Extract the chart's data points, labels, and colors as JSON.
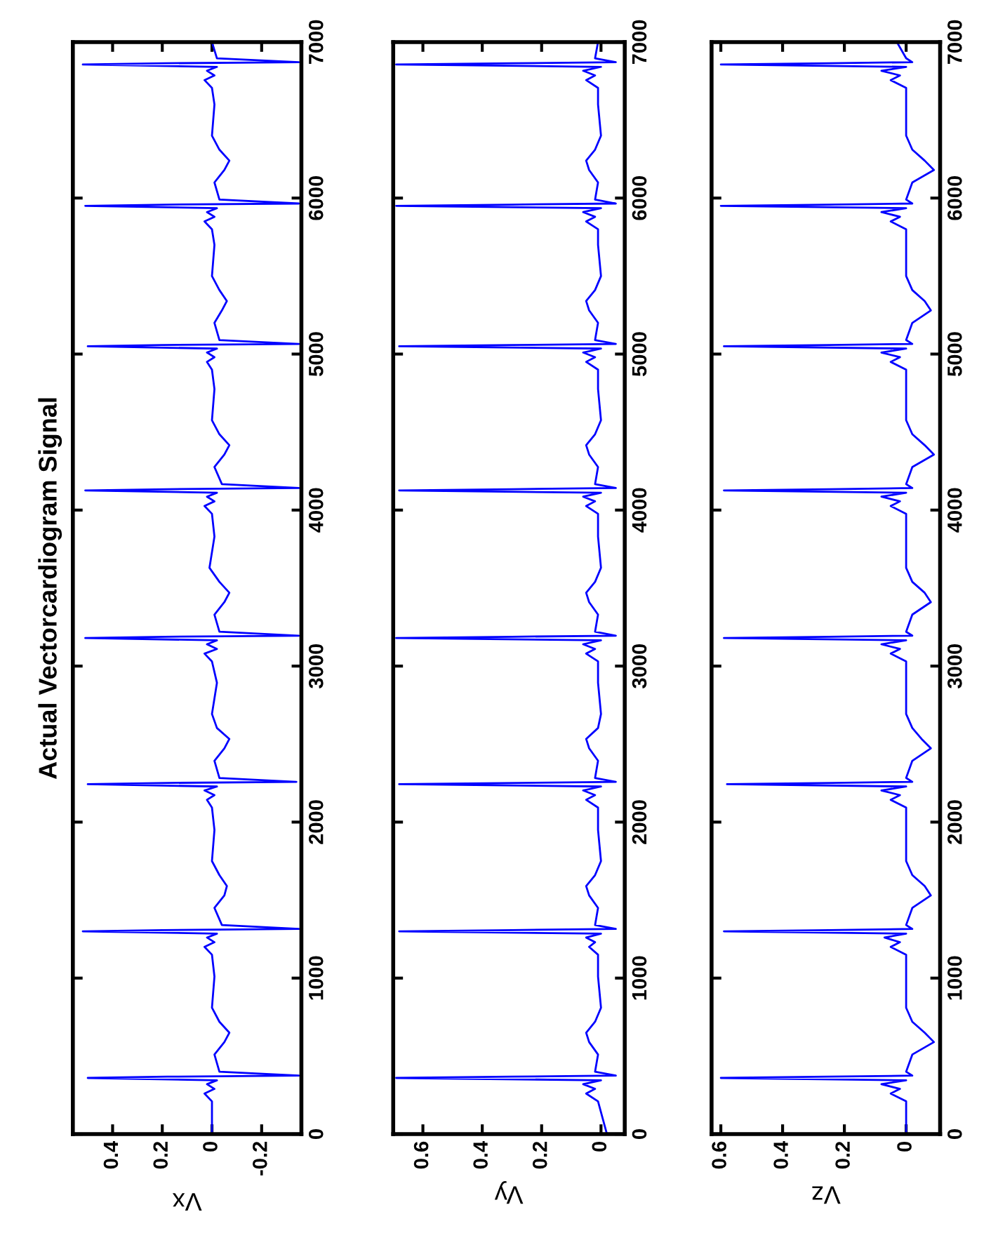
{
  "chart_data": [
    {
      "type": "line",
      "title": "Actual Vectorcardiogram Signal",
      "xlabel": "Vx",
      "color": "#0000ff",
      "ylim": [
        0,
        7000
      ],
      "yticks": [
        0,
        1000,
        2000,
        3000,
        4000,
        5000,
        6000,
        7000
      ],
      "xlim": [
        0.56,
        -0.36
      ],
      "xticks": [
        -0.2,
        0,
        0.2,
        0.4
      ],
      "values": [
        0,
        210,
        260,
        290,
        320,
        345,
        360,
        368,
        375,
        400,
        510,
        590,
        650,
        720,
        810,
        1010,
        1150,
        1200,
        1230,
        1260,
        1285,
        1300,
        1308,
        1315,
        1340,
        1450,
        1530,
        1590,
        1660,
        1750,
        1950,
        2093,
        2143,
        2173,
        2203,
        2228,
        2243,
        2251,
        2258,
        2283,
        2393,
        2473,
        2533,
        2603,
        2693,
        2893,
        3030,
        3080,
        3110,
        3140,
        3165,
        3180,
        3188,
        3195,
        3220,
        3330,
        3410,
        3470,
        3540,
        3630,
        3830,
        3976,
        4026,
        4056,
        4086,
        4111,
        4126,
        4134,
        4141,
        4166,
        4276,
        4356,
        4416,
        4486,
        4576,
        4776,
        4900,
        4950,
        4980,
        5010,
        5035,
        5050,
        5058,
        5065,
        5090,
        5200,
        5280,
        5340,
        5410,
        5500,
        5700,
        5800,
        5850,
        5880,
        5910,
        5935,
        5950,
        5958,
        5965,
        5990,
        6100,
        6180,
        6240,
        6310,
        6400,
        6600,
        6706,
        6756,
        6786,
        6816,
        6841,
        6856,
        6864,
        6871,
        6896,
        7000
      ],
      "x": [
        0.0,
        0.0,
        0.03,
        -0.01,
        0.02,
        -0.02,
        0.5,
        0.18,
        -0.35,
        -0.03,
        -0.01,
        -0.05,
        -0.07,
        -0.03,
        0.0,
        -0.01,
        0.0,
        0.03,
        -0.01,
        0.02,
        -0.02,
        0.52,
        0.2,
        -0.35,
        -0.04,
        -0.01,
        -0.05,
        -0.06,
        -0.03,
        0.0,
        -0.01,
        0.0,
        0.02,
        -0.01,
        0.03,
        -0.02,
        0.5,
        0.18,
        -0.34,
        -0.03,
        -0.01,
        -0.05,
        -0.07,
        -0.02,
        0.0,
        -0.02,
        0.0,
        0.03,
        -0.02,
        0.02,
        -0.02,
        0.51,
        0.19,
        -0.35,
        -0.03,
        -0.01,
        -0.05,
        -0.07,
        -0.03,
        0.01,
        -0.01,
        0.0,
        0.03,
        -0.01,
        0.02,
        -0.02,
        0.51,
        0.18,
        -0.35,
        -0.04,
        -0.01,
        -0.05,
        -0.07,
        -0.03,
        0.0,
        -0.01,
        0.0,
        0.02,
        -0.01,
        0.02,
        -0.02,
        0.5,
        0.2,
        -0.35,
        -0.03,
        -0.01,
        -0.04,
        -0.06,
        -0.03,
        0.0,
        -0.01,
        0.0,
        0.03,
        -0.01,
        0.02,
        -0.02,
        0.51,
        0.18,
        -0.35,
        -0.03,
        -0.01,
        -0.05,
        -0.07,
        -0.03,
        0.0,
        -0.01,
        0.0,
        0.03,
        -0.01,
        0.02,
        -0.02,
        0.52,
        0.19,
        -0.35,
        -0.02,
        0.0
      ]
    },
    {
      "type": "line",
      "xlabel": "Vy",
      "color": "#0000ff",
      "ylim": [
        0,
        7000
      ],
      "yticks": [
        0,
        1000,
        2000,
        3000,
        4000,
        5000,
        6000,
        7000
      ],
      "xlim": [
        0.7,
        -0.08
      ],
      "xticks": [
        0,
        0.2,
        0.4,
        0.6
      ],
      "values": [
        0,
        210,
        260,
        290,
        320,
        345,
        360,
        368,
        375,
        400,
        510,
        590,
        650,
        720,
        810,
        1010,
        1150,
        1200,
        1230,
        1260,
        1285,
        1300,
        1308,
        1315,
        1340,
        1450,
        1530,
        1590,
        1660,
        1750,
        1950,
        2093,
        2143,
        2173,
        2203,
        2228,
        2243,
        2251,
        2258,
        2283,
        2393,
        2473,
        2533,
        2603,
        2693,
        2893,
        3030,
        3080,
        3110,
        3140,
        3165,
        3180,
        3188,
        3195,
        3220,
        3330,
        3410,
        3470,
        3540,
        3630,
        3830,
        3976,
        4026,
        4056,
        4086,
        4111,
        4126,
        4134,
        4141,
        4166,
        4276,
        4356,
        4416,
        4486,
        4576,
        4776,
        4900,
        4950,
        4980,
        5010,
        5035,
        5050,
        5058,
        5065,
        5090,
        5200,
        5280,
        5340,
        5410,
        5500,
        5700,
        5800,
        5850,
        5880,
        5910,
        5935,
        5950,
        5958,
        5965,
        5990,
        6100,
        6180,
        6240,
        6310,
        6400,
        6600,
        6706,
        6756,
        6786,
        6816,
        6841,
        6856,
        6864,
        6871,
        6896,
        7000
      ],
      "x": [
        -0.02,
        0.01,
        0.05,
        0.02,
        0.06,
        0.0,
        0.69,
        0.3,
        -0.05,
        0.02,
        0.01,
        0.04,
        0.05,
        0.02,
        0.0,
        0.01,
        0.01,
        0.04,
        0.02,
        0.05,
        0.0,
        0.68,
        0.3,
        -0.05,
        0.02,
        0.01,
        0.04,
        0.05,
        0.02,
        0.0,
        0.01,
        0.01,
        0.05,
        0.02,
        0.06,
        0.0,
        0.68,
        0.28,
        -0.05,
        0.02,
        0.01,
        0.04,
        0.05,
        0.01,
        0.0,
        0.01,
        0.01,
        0.05,
        0.02,
        0.06,
        0.0,
        0.69,
        0.3,
        -0.05,
        0.02,
        0.01,
        0.04,
        0.05,
        0.02,
        0.0,
        0.01,
        0.01,
        0.05,
        0.02,
        0.06,
        0.0,
        0.68,
        0.3,
        -0.05,
        0.02,
        0.01,
        0.04,
        0.05,
        0.02,
        0.0,
        0.01,
        0.01,
        0.05,
        0.02,
        0.06,
        0.0,
        0.68,
        0.3,
        -0.05,
        0.02,
        0.01,
        0.04,
        0.05,
        0.02,
        0.0,
        0.01,
        0.01,
        0.05,
        0.02,
        0.06,
        0.0,
        0.69,
        0.3,
        -0.05,
        0.02,
        0.01,
        0.04,
        0.05,
        0.02,
        0.0,
        0.01,
        0.01,
        0.05,
        0.02,
        0.06,
        0.0,
        0.69,
        0.3,
        -0.05,
        0.02,
        0.01
      ]
    },
    {
      "type": "line",
      "xlabel": "Vz",
      "color": "#0000ff",
      "ylim": [
        0,
        7000
      ],
      "yticks": [
        0,
        1000,
        2000,
        3000,
        4000,
        5000,
        6000,
        7000
      ],
      "xlim": [
        0.63,
        -0.11
      ],
      "xticks": [
        0,
        0.2,
        0.4,
        0.6
      ],
      "values": [
        0,
        210,
        260,
        290,
        320,
        345,
        360,
        368,
        375,
        400,
        510,
        590,
        650,
        720,
        810,
        1010,
        1150,
        1200,
        1230,
        1260,
        1285,
        1300,
        1308,
        1315,
        1340,
        1450,
        1530,
        1590,
        1660,
        1750,
        1950,
        2093,
        2143,
        2173,
        2203,
        2228,
        2243,
        2251,
        2258,
        2283,
        2393,
        2473,
        2533,
        2603,
        2693,
        2893,
        3030,
        3080,
        3110,
        3140,
        3165,
        3180,
        3188,
        3195,
        3220,
        3330,
        3410,
        3470,
        3540,
        3630,
        3830,
        3976,
        4026,
        4056,
        4086,
        4111,
        4126,
        4134,
        4141,
        4166,
        4276,
        4356,
        4416,
        4486,
        4576,
        4776,
        4900,
        4950,
        4980,
        5010,
        5035,
        5050,
        5058,
        5065,
        5090,
        5200,
        5280,
        5340,
        5410,
        5500,
        5700,
        5800,
        5850,
        5880,
        5910,
        5935,
        5950,
        5958,
        5965,
        5990,
        6100,
        6180,
        6240,
        6310,
        6400,
        6600,
        6706,
        6756,
        6786,
        6816,
        6841,
        6856,
        6864,
        6871,
        6896,
        7000
      ],
      "x": [
        0.0,
        0.0,
        0.05,
        0.02,
        0.08,
        0.0,
        0.6,
        0.25,
        -0.02,
        0.0,
        -0.02,
        -0.09,
        -0.06,
        -0.02,
        0.0,
        0.0,
        0.0,
        0.05,
        0.02,
        0.07,
        0.0,
        0.59,
        0.25,
        -0.02,
        0.0,
        -0.02,
        -0.08,
        -0.06,
        -0.02,
        0.0,
        0.0,
        0.0,
        0.05,
        0.02,
        0.08,
        0.0,
        0.58,
        0.24,
        -0.02,
        0.0,
        -0.02,
        -0.08,
        -0.05,
        -0.02,
        0.0,
        0.0,
        0.0,
        0.05,
        0.02,
        0.08,
        0.0,
        0.59,
        0.25,
        -0.02,
        0.0,
        -0.02,
        -0.08,
        -0.06,
        -0.02,
        0.0,
        0.0,
        0.0,
        0.05,
        0.02,
        0.08,
        0.0,
        0.59,
        0.25,
        -0.02,
        0.0,
        -0.02,
        -0.09,
        -0.06,
        -0.02,
        0.0,
        0.0,
        0.0,
        0.05,
        0.02,
        0.08,
        0.0,
        0.59,
        0.25,
        -0.02,
        0.0,
        -0.02,
        -0.08,
        -0.06,
        -0.02,
        0.0,
        0.0,
        0.0,
        0.05,
        0.02,
        0.08,
        0.0,
        0.6,
        0.25,
        -0.02,
        0.0,
        -0.02,
        -0.09,
        -0.06,
        -0.02,
        0.0,
        0.0,
        0.0,
        0.05,
        0.02,
        0.08,
        0.0,
        0.6,
        0.25,
        -0.02,
        0.0,
        0.03
      ]
    }
  ]
}
